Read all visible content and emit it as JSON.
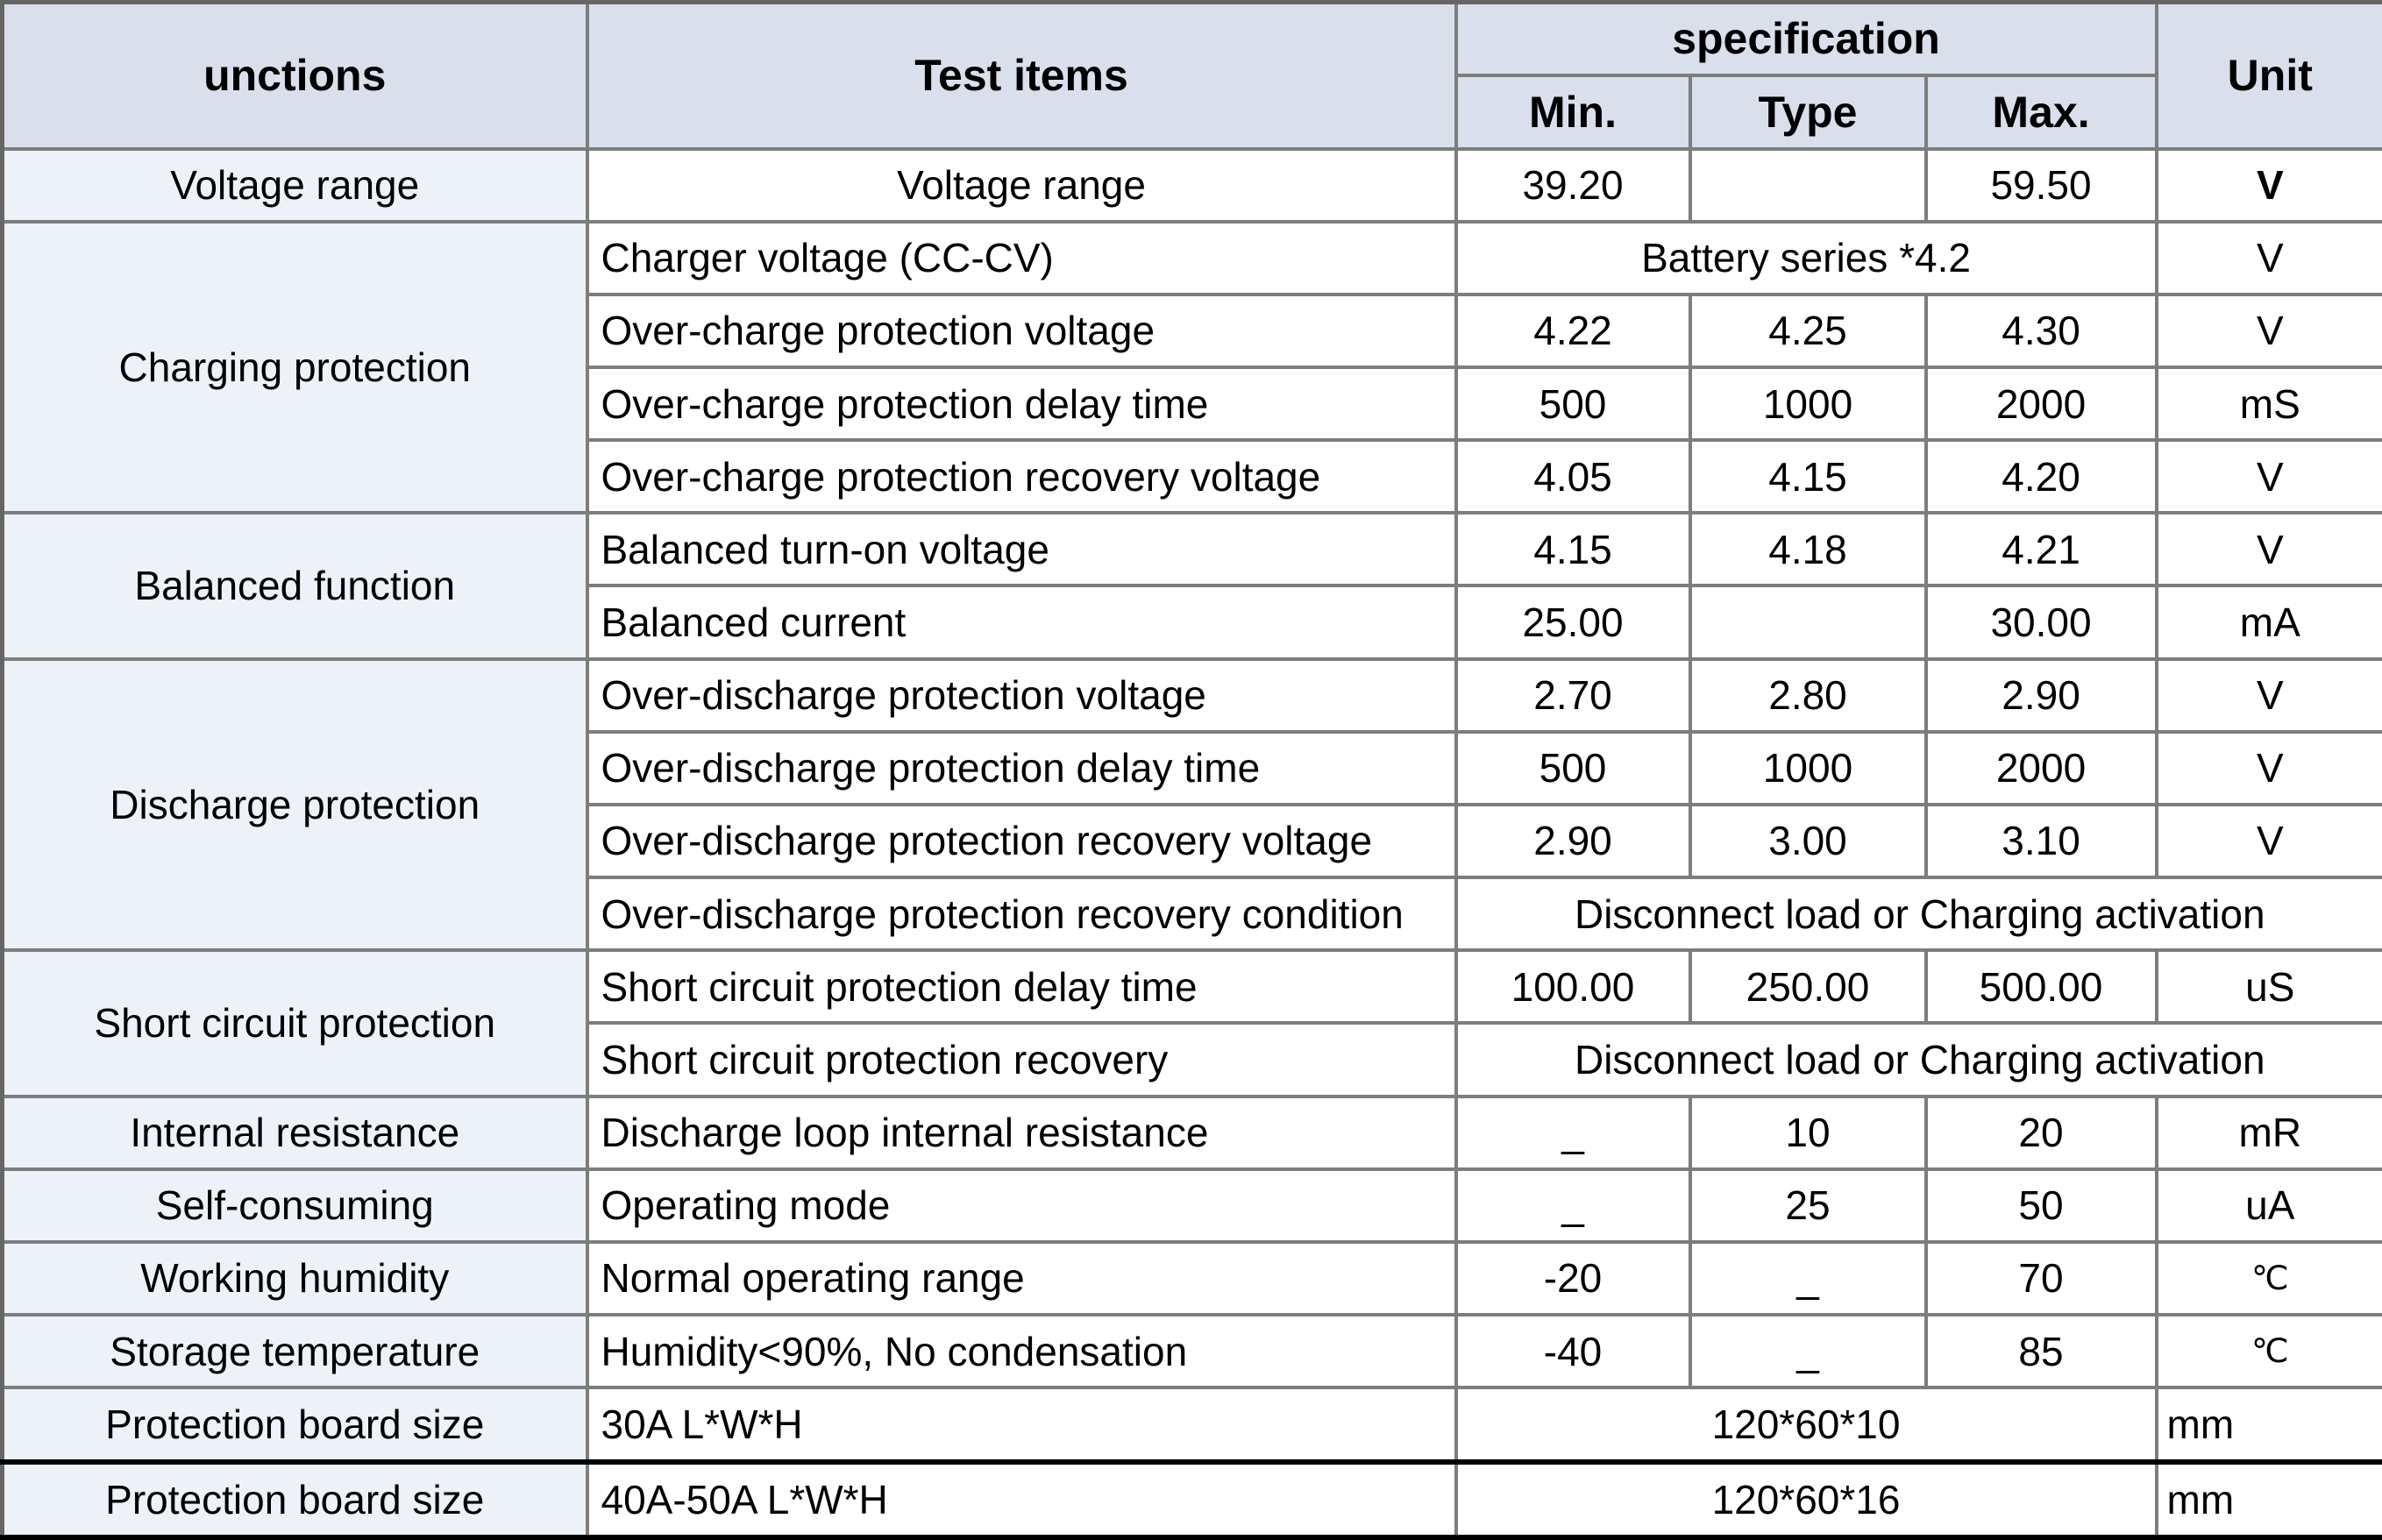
{
  "table": {
    "header": {
      "functions": "unctions",
      "test_items": "Test items",
      "specification": "specification",
      "min": "Min.",
      "type": "Type",
      "max": "Max.",
      "unit": "Unit"
    },
    "rows": [
      {
        "cells": [
          {
            "k": "func",
            "t": "Voltage range"
          },
          {
            "k": "item",
            "t": "Voltage range",
            "center": true
          },
          {
            "k": "num",
            "t": "39.20"
          },
          {
            "k": "num",
            "t": ""
          },
          {
            "k": "num",
            "t": "59.50"
          },
          {
            "k": "unit",
            "t": "V",
            "bold": true
          }
        ]
      },
      {
        "cells": [
          {
            "k": "func",
            "t": "Charging protection",
            "rs": 4
          },
          {
            "k": "item",
            "t": "Charger voltage (CC-CV)"
          },
          {
            "k": "num",
            "t": "Battery series *4.2",
            "cs": 3
          },
          {
            "k": "unit",
            "t": "V"
          }
        ]
      },
      {
        "cells": [
          {
            "k": "item",
            "t": "Over-charge protection voltage"
          },
          {
            "k": "num",
            "t": "4.22"
          },
          {
            "k": "num",
            "t": "4.25"
          },
          {
            "k": "num",
            "t": "4.30"
          },
          {
            "k": "unit",
            "t": "V"
          }
        ]
      },
      {
        "cells": [
          {
            "k": "item",
            "t": "Over-charge protection delay time"
          },
          {
            "k": "num",
            "t": "500"
          },
          {
            "k": "num",
            "t": "1000"
          },
          {
            "k": "num",
            "t": "2000"
          },
          {
            "k": "unit",
            "t": "mS"
          }
        ]
      },
      {
        "cells": [
          {
            "k": "item",
            "t": "Over-charge protection recovery voltage"
          },
          {
            "k": "num",
            "t": "4.05"
          },
          {
            "k": "num",
            "t": "4.15"
          },
          {
            "k": "num",
            "t": "4.20"
          },
          {
            "k": "unit",
            "t": "V"
          }
        ]
      },
      {
        "cells": [
          {
            "k": "func",
            "t": "Balanced function",
            "rs": 2
          },
          {
            "k": "item",
            "t": "Balanced turn-on voltage"
          },
          {
            "k": "num",
            "t": "4.15"
          },
          {
            "k": "num",
            "t": "4.18"
          },
          {
            "k": "num",
            "t": "4.21"
          },
          {
            "k": "unit",
            "t": "V"
          }
        ]
      },
      {
        "cells": [
          {
            "k": "item",
            "t": "Balanced current"
          },
          {
            "k": "num",
            "t": "25.00"
          },
          {
            "k": "num",
            "t": ""
          },
          {
            "k": "num",
            "t": "30.00"
          },
          {
            "k": "unit",
            "t": "mA"
          }
        ]
      },
      {
        "cells": [
          {
            "k": "func",
            "t": "Discharge protection",
            "rs": 4
          },
          {
            "k": "item",
            "t": "Over-discharge protection voltage"
          },
          {
            "k": "num",
            "t": "2.70"
          },
          {
            "k": "num",
            "t": "2.80"
          },
          {
            "k": "num",
            "t": "2.90"
          },
          {
            "k": "unit",
            "t": "V"
          }
        ]
      },
      {
        "cells": [
          {
            "k": "item",
            "t": "Over-discharge protection delay time"
          },
          {
            "k": "num",
            "t": "500"
          },
          {
            "k": "num",
            "t": "1000"
          },
          {
            "k": "num",
            "t": "2000"
          },
          {
            "k": "unit",
            "t": "V"
          }
        ]
      },
      {
        "cells": [
          {
            "k": "item",
            "t": "Over-discharge protection recovery voltage"
          },
          {
            "k": "num",
            "t": "2.90"
          },
          {
            "k": "num",
            "t": "3.00"
          },
          {
            "k": "num",
            "t": "3.10"
          },
          {
            "k": "unit",
            "t": "V"
          }
        ]
      },
      {
        "cells": [
          {
            "k": "item",
            "t": "Over-discharge protection recovery condition"
          },
          {
            "k": "num",
            "t": "Disconnect load or Charging activation",
            "cs": 4
          }
        ]
      },
      {
        "cells": [
          {
            "k": "func",
            "t": "Short circuit protection",
            "rs": 2
          },
          {
            "k": "item",
            "t": "Short circuit protection delay time"
          },
          {
            "k": "num",
            "t": "100.00"
          },
          {
            "k": "num",
            "t": "250.00"
          },
          {
            "k": "num",
            "t": "500.00"
          },
          {
            "k": "unit",
            "t": "uS"
          }
        ]
      },
      {
        "cells": [
          {
            "k": "item",
            "t": "Short circuit protection recovery"
          },
          {
            "k": "num",
            "t": "Disconnect load or Charging activation",
            "cs": 4
          }
        ]
      },
      {
        "cells": [
          {
            "k": "func",
            "t": "Internal resistance"
          },
          {
            "k": "item",
            "t": "Discharge loop internal resistance"
          },
          {
            "k": "num",
            "t": "_"
          },
          {
            "k": "num",
            "t": "10"
          },
          {
            "k": "num",
            "t": "20"
          },
          {
            "k": "unit",
            "t": "mR"
          }
        ]
      },
      {
        "cells": [
          {
            "k": "func",
            "t": "Self-consuming"
          },
          {
            "k": "item",
            "t": "Operating mode"
          },
          {
            "k": "num",
            "t": "_"
          },
          {
            "k": "num",
            "t": "25"
          },
          {
            "k": "num",
            "t": "50"
          },
          {
            "k": "unit",
            "t": "uA"
          }
        ]
      },
      {
        "cells": [
          {
            "k": "func",
            "t": "Working humidity"
          },
          {
            "k": "item",
            "t": "Normal operating range"
          },
          {
            "k": "num",
            "t": "-20"
          },
          {
            "k": "num",
            "t": "_"
          },
          {
            "k": "num",
            "t": "70"
          },
          {
            "k": "unit",
            "t": "℃",
            "small": true
          }
        ]
      },
      {
        "cells": [
          {
            "k": "func",
            "t": "Storage temperature"
          },
          {
            "k": "item",
            "t": "Humidity<90%, No condensation"
          },
          {
            "k": "num",
            "t": "-40"
          },
          {
            "k": "num",
            "t": "_"
          },
          {
            "k": "num",
            "t": "85"
          },
          {
            "k": "unit",
            "t": "℃",
            "small": true
          }
        ]
      },
      {
        "cells": [
          {
            "k": "func",
            "t": "Protection board size"
          },
          {
            "k": "item",
            "t": "30A L*W*H"
          },
          {
            "k": "num",
            "t": "120*60*10",
            "cs": 3
          },
          {
            "k": "unit",
            "t": "mm",
            "left": true
          }
        ]
      },
      {
        "separator_top": true,
        "cells": [
          {
            "k": "func",
            "t": "Protection board size"
          },
          {
            "k": "item",
            "t": "40A-50A L*W*H"
          },
          {
            "k": "num",
            "t": "120*60*16",
            "cs": 3
          },
          {
            "k": "unit",
            "t": "mm",
            "left": true
          }
        ]
      }
    ],
    "colors": {
      "header_bg": "#d9e0ec",
      "function_bg": "#edf1f8",
      "grid": "#7d7d7d",
      "outer": "#666666",
      "heavy_border": "#000000"
    }
  }
}
